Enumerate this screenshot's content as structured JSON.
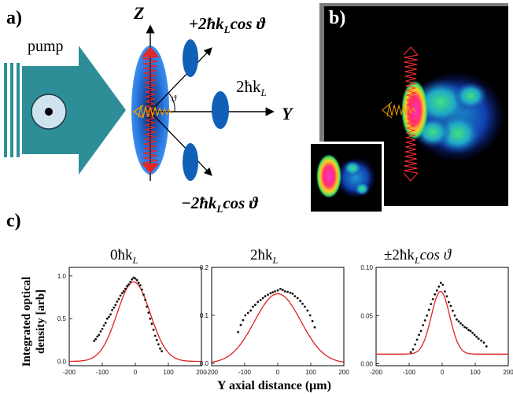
{
  "panel_a": {
    "label": "a)",
    "pump_label": "pump",
    "z_label": "Z",
    "y_label": "Y",
    "beam_top": "+2ħk",
    "beam_top_sub": "L",
    "beam_top_tail": "cos ϑ",
    "beam_mid": "2ħk",
    "beam_mid_sub": "L",
    "beam_bot": "−2ħk",
    "beam_bot_sub": "L",
    "beam_bot_tail": "cos ϑ",
    "angle_symbol": "ϑ"
  },
  "panel_b": {
    "label": "b)"
  },
  "panel_c": {
    "label": "c)",
    "y_axis_label_line1": "Integrated optical",
    "y_axis_label_line2": "density [arb]",
    "x_axis_label": "Y axial distance  (μm)",
    "titles": [
      {
        "pre": "0ħk",
        "sub": "L",
        "post": ""
      },
      {
        "pre": "2ħk",
        "sub": "L",
        "post": ""
      },
      {
        "pre": "±2ħk",
        "sub": "L",
        "post": "cos ϑ"
      }
    ]
  },
  "chart_data": [
    {
      "type": "scatter",
      "title": "0ħkL",
      "xlabel": "Y axial distance (μm)",
      "ylabel": "Integrated optical density [arb]",
      "xlim": [
        -200,
        200
      ],
      "ylim": [
        -0.05,
        1.1
      ],
      "xticks": [
        -200,
        -100,
        0,
        100,
        200
      ],
      "yticks": [
        0.0,
        0.5,
        1.0
      ],
      "ytick_labels": [
        "0.0",
        "0.5",
        "1.0"
      ],
      "fit": {
        "type": "gaussian",
        "amplitude": 0.93,
        "center": -5,
        "sigma": 50,
        "offset": 0.0,
        "color": "#e02020"
      },
      "points_x": [
        -125,
        -120,
        -115,
        -110,
        -105,
        -100,
        -95,
        -90,
        -85,
        -80,
        -75,
        -70,
        -65,
        -60,
        -55,
        -50,
        -45,
        -40,
        -35,
        -30,
        -25,
        -20,
        -15,
        -10,
        -5,
        0,
        5,
        10,
        15,
        20,
        25,
        30,
        35,
        40,
        45,
        50,
        55,
        60,
        65,
        70,
        75,
        80
      ],
      "points_y": [
        0.24,
        0.26,
        0.29,
        0.31,
        0.35,
        0.38,
        0.42,
        0.45,
        0.5,
        0.52,
        0.55,
        0.6,
        0.63,
        0.66,
        0.7,
        0.73,
        0.77,
        0.8,
        0.82,
        0.85,
        0.88,
        0.9,
        0.93,
        0.96,
        0.98,
        0.97,
        0.95,
        0.92,
        0.89,
        0.84,
        0.78,
        0.72,
        0.64,
        0.57,
        0.5,
        0.44,
        0.37,
        0.3,
        0.25,
        0.2,
        0.15,
        0.12
      ]
    },
    {
      "type": "scatter",
      "title": "2ħkL",
      "xlim": [
        -200,
        200
      ],
      "ylim": [
        -0.005,
        0.2
      ],
      "xticks": [
        -200,
        -100,
        0,
        100,
        200
      ],
      "yticks": [
        0.0,
        0.1,
        0.2
      ],
      "ytick_labels": [
        "0.0",
        "0.1",
        "0.2"
      ],
      "fit": {
        "type": "gaussian",
        "amplitude": 0.145,
        "center": 0,
        "sigma": 70,
        "offset": 0.0,
        "color": "#e02020"
      },
      "points_x": [
        -120,
        -112,
        -105,
        -98,
        -90,
        -82,
        -75,
        -68,
        -60,
        -52,
        -45,
        -38,
        -30,
        -22,
        -15,
        -8,
        0,
        8,
        15,
        22,
        30,
        38,
        45,
        52,
        60,
        68,
        75,
        82,
        90,
        98,
        105,
        112
      ],
      "points_y": [
        0.065,
        0.08,
        0.09,
        0.1,
        0.105,
        0.11,
        0.118,
        0.122,
        0.128,
        0.132,
        0.136,
        0.14,
        0.143,
        0.146,
        0.148,
        0.15,
        0.152,
        0.155,
        0.153,
        0.15,
        0.149,
        0.147,
        0.145,
        0.14,
        0.136,
        0.13,
        0.124,
        0.118,
        0.11,
        0.1,
        0.088,
        0.075
      ]
    },
    {
      "type": "scatter",
      "title": "±2ħkLcosϑ",
      "xlim": [
        -200,
        200
      ],
      "ylim": [
        -0.002,
        0.1
      ],
      "xticks": [
        -200,
        -100,
        0,
        100,
        200
      ],
      "yticks": [
        0.0,
        0.05,
        0.1
      ],
      "ytick_labels": [
        "0.00",
        "0.05",
        "0.10"
      ],
      "fit": {
        "type": "gaussian",
        "amplitude": 0.065,
        "center": -5,
        "sigma": 28,
        "offset": 0.01,
        "color": "#e02020"
      },
      "points_x": [
        -95,
        -88,
        -82,
        -76,
        -70,
        -64,
        -58,
        -52,
        -46,
        -40,
        -34,
        -28,
        -22,
        -16,
        -10,
        -4,
        2,
        8,
        14,
        20,
        26,
        32,
        38,
        44,
        50,
        56,
        62,
        68,
        74,
        80,
        86,
        92,
        98,
        104,
        110,
        118,
        126,
        134
      ],
      "points_y": [
        0.012,
        0.015,
        0.02,
        0.025,
        0.03,
        0.034,
        0.04,
        0.045,
        0.05,
        0.056,
        0.062,
        0.067,
        0.072,
        0.076,
        0.08,
        0.084,
        0.082,
        0.075,
        0.07,
        0.064,
        0.06,
        0.055,
        0.05,
        0.046,
        0.044,
        0.042,
        0.04,
        0.038,
        0.037,
        0.035,
        0.034,
        0.032,
        0.03,
        0.028,
        0.026,
        0.024,
        0.022,
        0.018
      ]
    }
  ],
  "colors": {
    "pump_teal": "#2e8e98",
    "cloud_blue": "#1a6fd0",
    "lobe_blue": "#1060b8",
    "red_beam": "#e02828",
    "orange_beam": "#f0a000",
    "fit_red": "#e02020"
  }
}
